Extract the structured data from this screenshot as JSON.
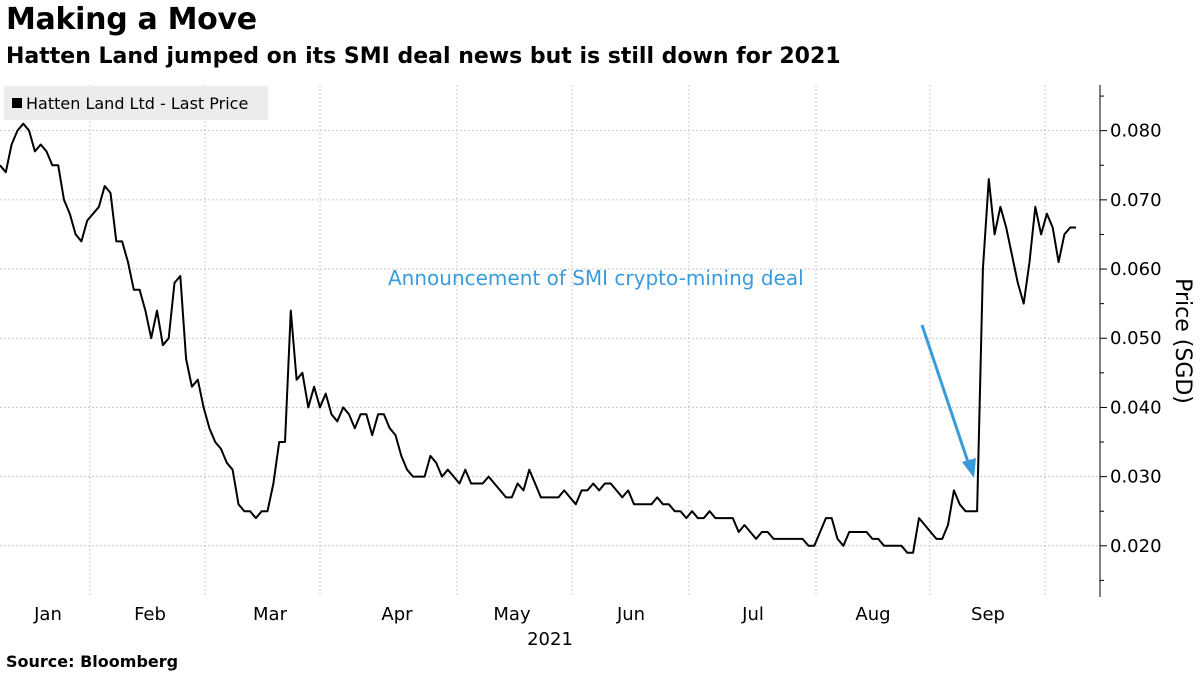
{
  "chart_data": {
    "type": "line",
    "title": "Making a Move",
    "subtitle": "Hatten Land jumped on its SMI deal news but is still down for 2021",
    "xlabel": "2021",
    "ylabel": "Price (SGD)",
    "ylim": [
      0.0126,
      0.0866
    ],
    "yticks": [
      0.02,
      0.03,
      0.04,
      0.05,
      0.06,
      0.07,
      0.08
    ],
    "ytick_labels": [
      "0.020",
      "0.030",
      "0.040",
      "0.050",
      "0.060",
      "0.070",
      "0.080"
    ],
    "months": [
      "Jan",
      "Feb",
      "Mar",
      "Apr",
      "May",
      "Jun",
      "Jul",
      "Aug",
      "Sep"
    ],
    "grid": true,
    "legend_position": "top-left",
    "series": [
      {
        "name": "Hatten Land Ltd - Last Price",
        "color": "#000000",
        "values": [
          0.075,
          0.074,
          0.078,
          0.08,
          0.081,
          0.08,
          0.077,
          0.078,
          0.077,
          0.075,
          0.075,
          0.07,
          0.068,
          0.065,
          0.064,
          0.067,
          0.068,
          0.069,
          0.072,
          0.071,
          0.064,
          0.064,
          0.061,
          0.057,
          0.057,
          0.054,
          0.05,
          0.054,
          0.049,
          0.05,
          0.058,
          0.059,
          0.047,
          0.043,
          0.044,
          0.04,
          0.037,
          0.035,
          0.034,
          0.032,
          0.031,
          0.026,
          0.025,
          0.025,
          0.024,
          0.025,
          0.025,
          0.029,
          0.035,
          0.035,
          0.054,
          0.044,
          0.045,
          0.04,
          0.043,
          0.04,
          0.042,
          0.039,
          0.038,
          0.04,
          0.039,
          0.037,
          0.039,
          0.039,
          0.036,
          0.039,
          0.039,
          0.037,
          0.036,
          0.033,
          0.031,
          0.03,
          0.03,
          0.03,
          0.033,
          0.032,
          0.03,
          0.031,
          0.03,
          0.029,
          0.031,
          0.029,
          0.029,
          0.029,
          0.03,
          0.029,
          0.028,
          0.027,
          0.027,
          0.029,
          0.028,
          0.031,
          0.029,
          0.027,
          0.027,
          0.027,
          0.027,
          0.028,
          0.027,
          0.026,
          0.028,
          0.028,
          0.029,
          0.028,
          0.029,
          0.029,
          0.028,
          0.027,
          0.028,
          0.026,
          0.026,
          0.026,
          0.026,
          0.027,
          0.026,
          0.026,
          0.025,
          0.025,
          0.024,
          0.025,
          0.024,
          0.024,
          0.025,
          0.024,
          0.024,
          0.024,
          0.024,
          0.022,
          0.023,
          0.022,
          0.021,
          0.022,
          0.022,
          0.021,
          0.021,
          0.021,
          0.021,
          0.021,
          0.021,
          0.02,
          0.02,
          0.022,
          0.024,
          0.024,
          0.021,
          0.02,
          0.022,
          0.022,
          0.022,
          0.022,
          0.021,
          0.021,
          0.02,
          0.02,
          0.02,
          0.02,
          0.019,
          0.019,
          0.024,
          0.023,
          0.022,
          0.021,
          0.021,
          0.023,
          0.028,
          0.026,
          0.025,
          0.025,
          0.025,
          0.06,
          0.073,
          0.065,
          0.069,
          0.066,
          0.062,
          0.058,
          0.055,
          0.061,
          0.069,
          0.065,
          0.068,
          0.066,
          0.061,
          0.065,
          0.066,
          0.066
        ]
      }
    ],
    "annotation": {
      "text": "Announcement of SMI crypto-mining deal",
      "color": "#3a9bdc"
    }
  },
  "source": "Source:  Bloomberg"
}
